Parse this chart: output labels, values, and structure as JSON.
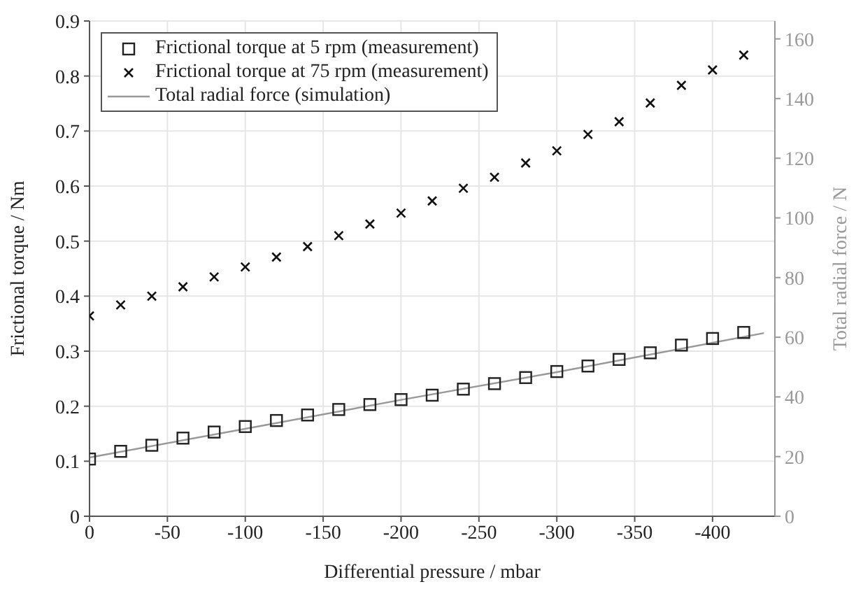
{
  "chart_data": {
    "type": "scatter",
    "xlabel": "Differential pressure / mbar",
    "ylabel": "Frictional torque / Nm",
    "y2label": "Total radial force / N",
    "xlim": [
      0,
      -440
    ],
    "xticks": [
      0,
      -50,
      -100,
      -150,
      -200,
      -250,
      -300,
      -350,
      -400
    ],
    "ylim": [
      0,
      0.9
    ],
    "yticks": [
      0,
      0.1,
      0.2,
      0.3,
      0.4,
      0.5,
      0.6,
      0.7,
      0.8,
      0.9
    ],
    "y2lim": [
      0,
      166
    ],
    "y2ticks": [
      0,
      20,
      40,
      60,
      80,
      100,
      120,
      140,
      160
    ],
    "grid": true,
    "legend": "top left",
    "series": [
      {
        "name": "Frictional torque at 5 rpm (measurement)",
        "color": "#222222",
        "marker": "square",
        "x": [
          0,
          -20,
          -40,
          -60,
          -80,
          -100,
          -120,
          -140,
          -160,
          -180,
          -200,
          -220,
          -240,
          -260,
          -280,
          -300,
          -320,
          -340,
          -360,
          -380,
          -400,
          -420
        ],
        "values": [
          0.104,
          0.118,
          0.129,
          0.142,
          0.153,
          0.163,
          0.174,
          0.184,
          0.194,
          0.203,
          0.212,
          0.22,
          0.231,
          0.241,
          0.252,
          0.263,
          0.273,
          0.285,
          0.297,
          0.311,
          0.323,
          0.334
        ]
      },
      {
        "name": "Frictional torque at 75 rpm (measurement)",
        "color": "#111111",
        "marker": "cross",
        "x": [
          0,
          -20,
          -40,
          -60,
          -80,
          -100,
          -120,
          -140,
          -160,
          -180,
          -200,
          -220,
          -240,
          -260,
          -280,
          -300,
          -320,
          -340,
          -360,
          -380,
          -400,
          -420
        ],
        "values": [
          0.364,
          0.384,
          0.4,
          0.417,
          0.435,
          0.453,
          0.471,
          0.49,
          0.51,
          0.531,
          0.551,
          0.573,
          0.596,
          0.616,
          0.642,
          0.664,
          0.694,
          0.717,
          0.751,
          0.783,
          0.811,
          0.838
        ]
      },
      {
        "name": "Total radial force (simulation)",
        "type": "line",
        "axis": "y2",
        "color": "#999999",
        "marker": "none",
        "x": [
          0,
          -100,
          -200,
          -300,
          -433
        ],
        "values": [
          19.7,
          29.3,
          39.0,
          48.3,
          61.4
        ]
      }
    ]
  }
}
